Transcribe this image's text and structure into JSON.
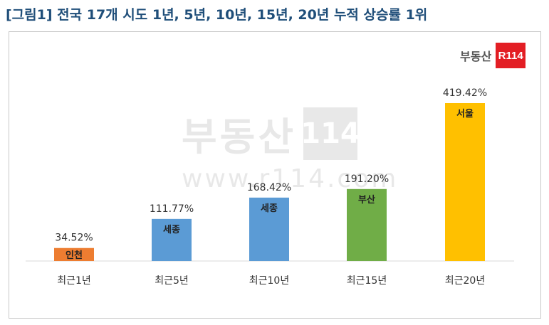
{
  "title": "[그림1] 전국 17개 시도 1년, 5년, 10년, 15년, 20년 누적 상승률 1위",
  "logo": {
    "text": "부동산",
    "badge": "R114"
  },
  "watermark": {
    "text": "부동산",
    "box": "114",
    "url": "www.r114.com"
  },
  "chart_data": {
    "type": "bar",
    "title": "",
    "xlabel": "",
    "ylabel": "",
    "categories": [
      "최근1년",
      "최근5년",
      "최근10년",
      "최근15년",
      "최근20년"
    ],
    "values": [
      34.52,
      111.77,
      168.42,
      191.2,
      419.42
    ],
    "value_labels": [
      "34.52%",
      "111.77%",
      "168.42%",
      "191.20%",
      "419.42%"
    ],
    "region_labels": [
      "인천",
      "세종",
      "세종",
      "부산",
      "서울"
    ],
    "colors": [
      "#ed7d31",
      "#5b9bd5",
      "#5b9bd5",
      "#70ad47",
      "#ffc000"
    ],
    "ylim": [
      0,
      450
    ],
    "grid": false,
    "legend": "none"
  }
}
